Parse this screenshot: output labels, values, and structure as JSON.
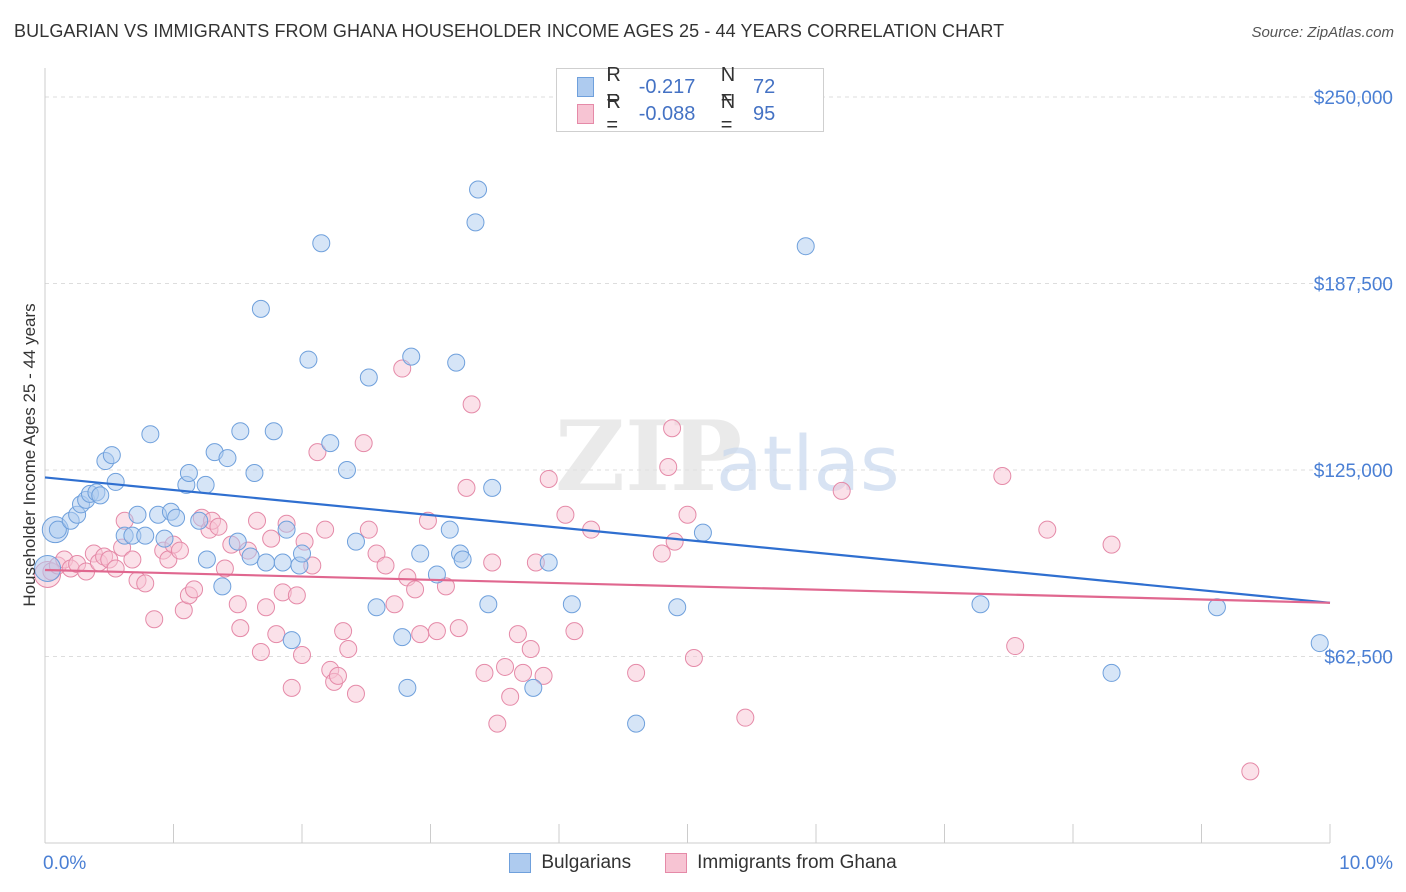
{
  "chart_data": {
    "type": "scatter",
    "title": "BULGARIAN VS IMMIGRANTS FROM GHANA HOUSEHOLDER INCOME AGES 25 - 44 YEARS CORRELATION CHART",
    "source": "Source: ZipAtlas.com",
    "xlabel": "",
    "ylabel": "Householder Income Ages 25 - 44 years",
    "xlim": [
      0,
      10
    ],
    "ylim": [
      0,
      250000
    ],
    "x_tick_labels": {
      "left": "0.0%",
      "right": "10.0%"
    },
    "y_tick_labels": [
      "$62,500",
      "$125,000",
      "$187,500",
      "$250,000"
    ],
    "y_tick_values": [
      62500,
      125000,
      187500,
      250000
    ],
    "watermark": "ZIPatlas",
    "legend": [
      {
        "name": "Bulgarians",
        "r_label": "R =",
        "r_value": "-0.217",
        "n_label": "N =",
        "n_value": "72",
        "fill": "#aecbef",
        "stroke": "#6fa0dc",
        "line": "#2f6fd0"
      },
      {
        "name": "Immigrants from Ghana",
        "r_label": "R =",
        "r_value": "-0.088",
        "n_label": "N =",
        "n_value": "95",
        "fill": "#f7c4d3",
        "stroke": "#e58aa8",
        "line": "#e0678f"
      }
    ],
    "series": [
      {
        "name": "Bulgarians",
        "trend": {
          "x": [
            0,
            10
          ],
          "y": [
            122500,
            80500
          ]
        },
        "points": [
          [
            0.1,
            105000
          ],
          [
            0.2,
            108000
          ],
          [
            0.25,
            110000
          ],
          [
            0.28,
            113500
          ],
          [
            0.32,
            115000
          ],
          [
            0.35,
            117000
          ],
          [
            0.4,
            117500
          ],
          [
            0.43,
            116500
          ],
          [
            0.47,
            128000
          ],
          [
            0.52,
            130000
          ],
          [
            0.55,
            121000
          ],
          [
            0.62,
            103000
          ],
          [
            0.68,
            103000
          ],
          [
            0.72,
            110000
          ],
          [
            0.78,
            103000
          ],
          [
            0.82,
            137000
          ],
          [
            0.88,
            110000
          ],
          [
            0.93,
            102000
          ],
          [
            0.98,
            111000
          ],
          [
            1.02,
            109000
          ],
          [
            1.1,
            120000
          ],
          [
            1.12,
            124000
          ],
          [
            1.2,
            108000
          ],
          [
            1.25,
            120000
          ],
          [
            1.26,
            95000
          ],
          [
            1.32,
            131000
          ],
          [
            1.38,
            86000
          ],
          [
            1.42,
            129000
          ],
          [
            1.5,
            101000
          ],
          [
            1.52,
            138000
          ],
          [
            1.6,
            96000
          ],
          [
            1.63,
            124000
          ],
          [
            1.68,
            179000
          ],
          [
            1.72,
            94000
          ],
          [
            1.78,
            138000
          ],
          [
            1.85,
            94000
          ],
          [
            1.88,
            105000
          ],
          [
            1.92,
            68000
          ],
          [
            1.98,
            93000
          ],
          [
            2.0,
            97000
          ],
          [
            2.05,
            162000
          ],
          [
            2.15,
            201000
          ],
          [
            2.22,
            134000
          ],
          [
            2.35,
            125000
          ],
          [
            2.42,
            101000
          ],
          [
            2.52,
            156000
          ],
          [
            2.58,
            79000
          ],
          [
            2.78,
            69000
          ],
          [
            2.82,
            52000
          ],
          [
            2.85,
            163000
          ],
          [
            2.92,
            97000
          ],
          [
            3.05,
            90000
          ],
          [
            3.15,
            105000
          ],
          [
            3.2,
            161000
          ],
          [
            3.23,
            97000
          ],
          [
            3.25,
            95000
          ],
          [
            3.35,
            208000
          ],
          [
            3.37,
            219000
          ],
          [
            3.45,
            80000
          ],
          [
            3.48,
            119000
          ],
          [
            3.8,
            52000
          ],
          [
            3.92,
            94000
          ],
          [
            4.1,
            80000
          ],
          [
            4.6,
            40000
          ],
          [
            4.92,
            79000
          ],
          [
            5.12,
            104000
          ],
          [
            5.92,
            200000
          ],
          [
            7.28,
            80000
          ],
          [
            8.3,
            57000
          ],
          [
            9.12,
            79000
          ],
          [
            9.92,
            67000
          ]
        ],
        "big_points": [
          [
            0.02,
            92000
          ],
          [
            0.08,
            105000
          ]
        ]
      },
      {
        "name": "Immigrants from Ghana",
        "trend": {
          "x": [
            0,
            10
          ],
          "y": [
            91500,
            80500
          ]
        },
        "points": [
          [
            0.05,
            91000
          ],
          [
            0.1,
            93000
          ],
          [
            0.15,
            95000
          ],
          [
            0.2,
            92000
          ],
          [
            0.25,
            93500
          ],
          [
            0.32,
            91000
          ],
          [
            0.38,
            97000
          ],
          [
            0.42,
            94000
          ],
          [
            0.46,
            96000
          ],
          [
            0.5,
            95000
          ],
          [
            0.55,
            92000
          ],
          [
            0.6,
            99000
          ],
          [
            0.62,
            108000
          ],
          [
            0.68,
            95000
          ],
          [
            0.72,
            88000
          ],
          [
            0.78,
            87000
          ],
          [
            0.85,
            75000
          ],
          [
            0.92,
            98000
          ],
          [
            0.96,
            95000
          ],
          [
            1.0,
            100000
          ],
          [
            1.05,
            98000
          ],
          [
            1.08,
            78000
          ],
          [
            1.12,
            83000
          ],
          [
            1.16,
            85000
          ],
          [
            1.22,
            109000
          ],
          [
            1.28,
            105000
          ],
          [
            1.3,
            108000
          ],
          [
            1.35,
            106000
          ],
          [
            1.4,
            92000
          ],
          [
            1.45,
            100000
          ],
          [
            1.5,
            80000
          ],
          [
            1.52,
            72000
          ],
          [
            1.58,
            98000
          ],
          [
            1.65,
            108000
          ],
          [
            1.68,
            64000
          ],
          [
            1.72,
            79000
          ],
          [
            1.76,
            102000
          ],
          [
            1.8,
            70000
          ],
          [
            1.85,
            84000
          ],
          [
            1.88,
            107000
          ],
          [
            1.92,
            52000
          ],
          [
            1.96,
            83000
          ],
          [
            2.0,
            63000
          ],
          [
            2.02,
            101000
          ],
          [
            2.08,
            93000
          ],
          [
            2.12,
            131000
          ],
          [
            2.18,
            105000
          ],
          [
            2.22,
            58000
          ],
          [
            2.25,
            54000
          ],
          [
            2.28,
            56000
          ],
          [
            2.32,
            71000
          ],
          [
            2.36,
            65000
          ],
          [
            2.42,
            50000
          ],
          [
            2.48,
            134000
          ],
          [
            2.52,
            105000
          ],
          [
            2.58,
            97000
          ],
          [
            2.65,
            93000
          ],
          [
            2.72,
            80000
          ],
          [
            2.78,
            159000
          ],
          [
            2.82,
            89000
          ],
          [
            2.88,
            85000
          ],
          [
            2.92,
            70000
          ],
          [
            2.98,
            108000
          ],
          [
            3.05,
            71000
          ],
          [
            3.12,
            86000
          ],
          [
            3.22,
            72000
          ],
          [
            3.28,
            119000
          ],
          [
            3.32,
            147000
          ],
          [
            3.42,
            57000
          ],
          [
            3.48,
            94000
          ],
          [
            3.52,
            40000
          ],
          [
            3.58,
            59000
          ],
          [
            3.62,
            49000
          ],
          [
            3.68,
            70000
          ],
          [
            3.72,
            57000
          ],
          [
            3.78,
            65000
          ],
          [
            3.82,
            94000
          ],
          [
            3.88,
            56000
          ],
          [
            3.92,
            122000
          ],
          [
            4.05,
            110000
          ],
          [
            4.12,
            71000
          ],
          [
            4.25,
            105000
          ],
          [
            4.6,
            57000
          ],
          [
            4.8,
            97000
          ],
          [
            4.85,
            126000
          ],
          [
            4.88,
            139000
          ],
          [
            4.9,
            101000
          ],
          [
            5.0,
            110000
          ],
          [
            5.05,
            62000
          ],
          [
            5.45,
            42000
          ],
          [
            6.2,
            118000
          ],
          [
            7.45,
            123000
          ],
          [
            7.55,
            66000
          ],
          [
            7.8,
            105000
          ],
          [
            8.3,
            100000
          ],
          [
            9.38,
            24000
          ]
        ],
        "big_points": [
          [
            0.02,
            90000
          ]
        ]
      }
    ]
  }
}
